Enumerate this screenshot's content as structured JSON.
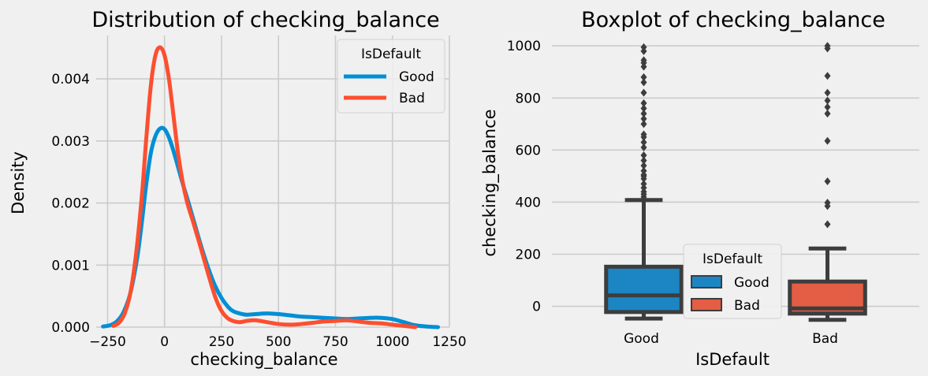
{
  "chart_data": [
    {
      "type": "line",
      "subtype": "kde",
      "title": "Distribution of checking_balance",
      "xlabel": "checking_balance",
      "ylabel": "Density",
      "xlim": [
        -300,
        1250
      ],
      "ylim": [
        0,
        0.0047
      ],
      "xticks": [
        -250,
        0,
        250,
        500,
        750,
        1000,
        1250
      ],
      "xtick_labels": [
        "−250",
        "0",
        "250",
        "500",
        "750",
        "1000",
        "1250"
      ],
      "yticks": [
        0,
        0.001,
        0.002,
        0.003,
        0.004
      ],
      "ytick_labels": [
        "0.000",
        "0.001",
        "0.002",
        "0.003",
        "0.004"
      ],
      "grid": true,
      "legend": {
        "title": "IsDefault",
        "placement": "top-right"
      },
      "series": [
        {
          "name": "Good",
          "color": "#008fd5",
          "x": [
            -270,
            -240,
            -210,
            -180,
            -150,
            -120,
            -100,
            -80,
            -60,
            -40,
            -20,
            0,
            20,
            40,
            60,
            80,
            100,
            130,
            160,
            190,
            220,
            250,
            280,
            300,
            330,
            360,
            400,
            450,
            500,
            550,
            600,
            650,
            700,
            750,
            800,
            850,
            900,
            950,
            1000,
            1050,
            1100,
            1150,
            1200
          ],
          "y": [
            1e-05,
            3e-05,
            9e-05,
            0.00024,
            0.00055,
            0.00112,
            0.00168,
            0.00231,
            0.00281,
            0.00308,
            0.0032,
            0.00319,
            0.00305,
            0.00283,
            0.00257,
            0.00231,
            0.00207,
            0.00169,
            0.00131,
            0.00097,
            0.00068,
            0.00047,
            0.00032,
            0.00026,
            0.00022,
            0.0002,
            0.00021,
            0.00022,
            0.00021,
            0.00019,
            0.00017,
            0.00016,
            0.00015,
            0.00014,
            0.00013,
            0.00014,
            0.00015,
            0.00015,
            0.00013,
            8e-05,
            3e-05,
            1e-05,
            0.0
          ]
        },
        {
          "name": "Bad",
          "color": "#fc4f30",
          "x": [
            -225,
            -200,
            -175,
            -150,
            -125,
            -100,
            -80,
            -60,
            -40,
            -20,
            0,
            20,
            40,
            60,
            80,
            100,
            125,
            150,
            175,
            200,
            225,
            250,
            275,
            300,
            330,
            360,
            400,
            450,
            500,
            550,
            600,
            650,
            700,
            750,
            800,
            850,
            900,
            950,
            1000,
            1050,
            1100
          ],
          "y": [
            2e-05,
            7e-05,
            0.00022,
            0.00055,
            0.00118,
            0.0021,
            0.00305,
            0.0039,
            0.00438,
            0.00451,
            0.00438,
            0.00398,
            0.00338,
            0.00278,
            0.00233,
            0.002,
            0.0017,
            0.00139,
            0.00107,
            0.00075,
            0.00046,
            0.00026,
            0.00015,
            0.0001,
            8e-05,
            0.0001,
            0.00011,
            8e-05,
            5e-05,
            4e-05,
            5e-05,
            7e-05,
            9e-05,
            0.0001,
            0.00011,
            9e-05,
            7e-05,
            6e-05,
            4e-05,
            2e-05,
            0.0
          ]
        }
      ]
    },
    {
      "type": "box",
      "title": "Boxplot of checking_balance",
      "xlabel": "IsDefault",
      "ylabel": "checking_balance",
      "categories": [
        "Good",
        "Bad"
      ],
      "ylim": [
        -80,
        1040
      ],
      "yticks": [
        0,
        200,
        400,
        600,
        800,
        1000
      ],
      "ytick_labels": [
        "0",
        "200",
        "400",
        "600",
        "800",
        "1000"
      ],
      "grid": true,
      "legend": {
        "title": "IsDefault",
        "placement": "lower-center"
      },
      "series": [
        {
          "name": "Good",
          "color": "#1c86c4",
          "stats": {
            "whisker_low": -47,
            "q1": -22,
            "median": 42,
            "q3": 152,
            "whisker_high": 408
          },
          "outliers": [
            420,
            430,
            440,
            455,
            470,
            490,
            500,
            505,
            520,
            540,
            560,
            580,
            610,
            630,
            650,
            660,
            700,
            720,
            740,
            760,
            780,
            820,
            860,
            880,
            920,
            935,
            945,
            980,
            995
          ]
        },
        {
          "name": "Bad",
          "color": "#e45d45",
          "stats": {
            "whisker_low": -52,
            "q1": -28,
            "median": -8,
            "q3": 95,
            "whisker_high": 222
          },
          "outliers": [
            315,
            385,
            398,
            480,
            635,
            740,
            765,
            790,
            820,
            885,
            990,
            1000
          ]
        }
      ]
    }
  ]
}
